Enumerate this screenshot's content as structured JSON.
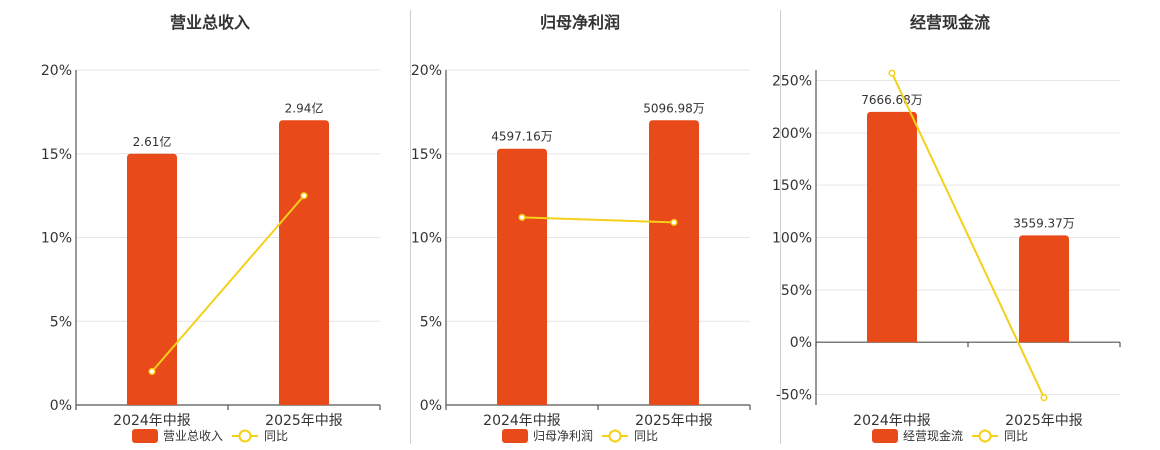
{
  "colors": {
    "bar": "#E84A1A",
    "line": "#F5D018"
  },
  "chart_data": [
    {
      "type": "bar",
      "title": "营业总收入",
      "categories": [
        "2024年中报",
        "2025年中报"
      ],
      "bar_values": [
        15,
        17
      ],
      "bar_labels": [
        "2.61亿",
        "2.94亿"
      ],
      "series": [
        {
          "name": "营业总收入",
          "type": "bar",
          "values": [
            15,
            17
          ]
        },
        {
          "name": "同比",
          "type": "line",
          "values": [
            2,
            12.5
          ]
        }
      ],
      "ylim": [
        0,
        20
      ],
      "yticks": [
        0,
        5,
        10,
        15,
        20
      ],
      "ytick_labels": [
        "0%",
        "5%",
        "10%",
        "15%",
        "20%"
      ],
      "legend": [
        "营业总收入",
        "同比"
      ],
      "legend_position": "bottom",
      "grid": true
    },
    {
      "type": "bar",
      "title": "归母净利润",
      "categories": [
        "2024年中报",
        "2025年中报"
      ],
      "bar_values": [
        15.3,
        17
      ],
      "bar_labels": [
        "4597.16万",
        "5096.98万"
      ],
      "series": [
        {
          "name": "归母净利润",
          "type": "bar",
          "values": [
            15.3,
            17
          ]
        },
        {
          "name": "同比",
          "type": "line",
          "values": [
            11.2,
            10.9
          ]
        }
      ],
      "ylim": [
        0,
        20
      ],
      "yticks": [
        0,
        5,
        10,
        15,
        20
      ],
      "ytick_labels": [
        "0%",
        "5%",
        "10%",
        "15%",
        "20%"
      ],
      "legend": [
        "归母净利润",
        "同比"
      ],
      "legend_position": "bottom",
      "grid": true
    },
    {
      "type": "bar",
      "title": "经营现金流",
      "categories": [
        "2024年中报",
        "2025年中报"
      ],
      "bar_values": [
        220,
        102
      ],
      "bar_labels": [
        "7666.68万",
        "3559.37万"
      ],
      "series": [
        {
          "name": "经营现金流",
          "type": "bar",
          "values": [
            220,
            102
          ]
        },
        {
          "name": "同比",
          "type": "line",
          "values": [
            257,
            -53
          ]
        }
      ],
      "ylim": [
        -60,
        260
      ],
      "yticks": [
        -50,
        0,
        50,
        100,
        150,
        200,
        250
      ],
      "ytick_labels": [
        "-50%",
        "0%",
        "50%",
        "100%",
        "150%",
        "200%",
        "250%"
      ],
      "legend": [
        "经营现金流",
        "同比"
      ],
      "legend_position": "bottom",
      "grid": true
    }
  ]
}
